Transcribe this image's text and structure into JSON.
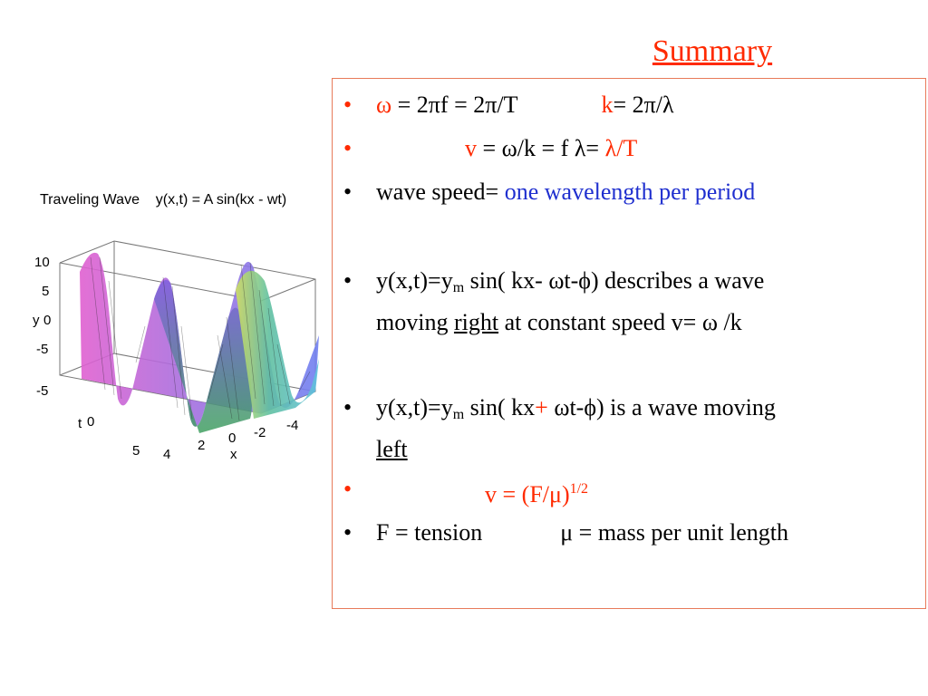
{
  "title": "Summary",
  "plot": {
    "title": "Traveling Wave    y(x,t) = A sin(kx - wt)",
    "y_axis": {
      "label": "y",
      "ticks": [
        "10",
        "5",
        "0",
        "-5",
        "-5"
      ]
    },
    "t_axis": {
      "label": "t",
      "ticks": [
        "0",
        "5"
      ]
    },
    "x_axis": {
      "label": "x",
      "ticks": [
        "4",
        "2",
        "0",
        "-2",
        "-4"
      ]
    }
  },
  "bullets": [
    {
      "marker": "•",
      "omega": "ω",
      "eq1": " = 2πf = 2π/T",
      "k": "k",
      "eq2": "= 2π/λ"
    },
    {
      "marker": "•",
      "v": "v",
      "eq1": " = ω/k = f λ= ",
      "eq2": "λ/T"
    },
    {
      "marker": "•",
      "text1": "wave speed= ",
      "text2": "one wavelength per period"
    },
    {
      "marker": "•",
      "line1a": "y(x,t)=y",
      "sub": "m",
      "line1b": " sin( kx- ωt-ϕ) describes a wave",
      "line2a": "moving ",
      "line2u": "right",
      "line2b": " at constant speed v= ω /k"
    },
    {
      "marker": "•",
      "line1a": "y(x,t)=y",
      "sub": "m",
      "line1b": " sin( kx",
      "plus": "+",
      "line1c": " ωt-ϕ) is a wave moving",
      "line2u": "left"
    },
    {
      "marker": "•",
      "text": "v = (F/μ)",
      "sup": "1/2"
    },
    {
      "marker": "•",
      "text1": "F = tension",
      "text2": "μ = mass per unit length"
    }
  ]
}
